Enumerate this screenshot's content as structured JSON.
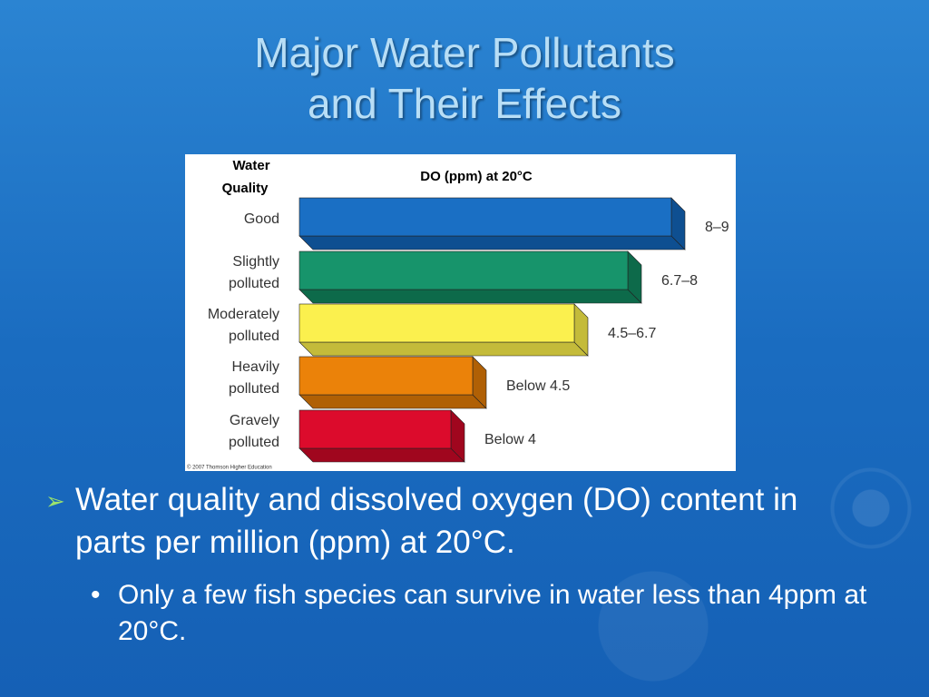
{
  "title": [
    "Major Water Pollutants",
    "and Their Effects"
  ],
  "figure": {
    "header_quality": [
      "Water",
      "Quality"
    ],
    "header_do": "DO (ppm) at 20°C",
    "rows": [
      {
        "label": [
          "Good"
        ],
        "range": "8–9"
      },
      {
        "label": [
          "Slightly",
          "polluted"
        ],
        "range": "6.7–8"
      },
      {
        "label": [
          "Moderately",
          "polluted"
        ],
        "range": "4.5–6.7"
      },
      {
        "label": [
          "Heavily",
          "polluted"
        ],
        "range": "Below 4.5"
      },
      {
        "label": [
          "Gravely",
          "polluted"
        ],
        "range": "Below 4"
      }
    ],
    "credit": "© 2007 Thomson Higher Education"
  },
  "bullets": [
    {
      "text": "Water quality and dissolved oxygen (DO) content in parts per million (ppm) at 20°C.",
      "sub": [
        "Only a few fish species can survive in water less than 4ppm at 20°C."
      ]
    }
  ]
}
